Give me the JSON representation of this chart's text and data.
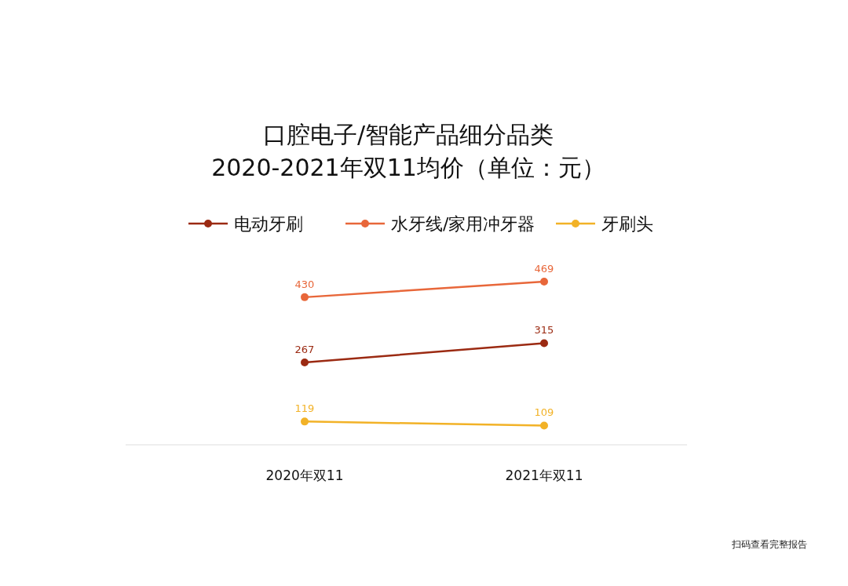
{
  "chart_data": {
    "type": "line",
    "title": "口腔电子/智能产品细分品类\n2020-2021年双11均价（单位：元）",
    "categories": [
      "2020年双11",
      "2021年双11"
    ],
    "series": [
      {
        "name": "电动牙刷",
        "color": "#9b2a12",
        "values": [
          267,
          315
        ]
      },
      {
        "name": "水牙线/家用冲牙器",
        "color": "#e8673a",
        "values": [
          430,
          469
        ]
      },
      {
        "name": "牙刷头",
        "color": "#f2b227",
        "values": [
          119,
          109
        ]
      }
    ],
    "data_labels": true,
    "legend": "top",
    "marker": "circle",
    "annotations": [
      "扫码查看完整报告"
    ]
  }
}
